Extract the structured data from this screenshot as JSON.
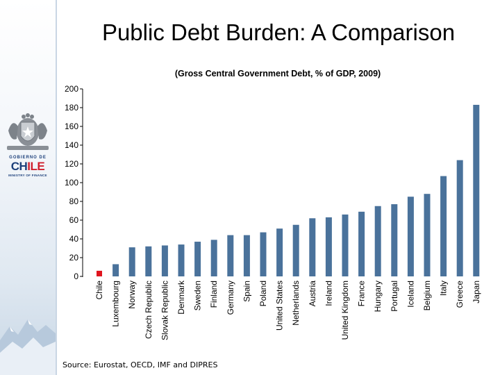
{
  "page": {
    "title": "Public Debt Burden: A Comparison",
    "source": "Source: Eurostat, OECD, IMF and DIPRES"
  },
  "logo": {
    "gobierno": "GOBIERNO DE",
    "chile_part1": "CH",
    "chile_part2": "ILE",
    "ministry": "MINISTRY OF FINANCE"
  },
  "colors": {
    "bar": "#4a729b",
    "highlight": "#e0141e"
  },
  "chart_data": {
    "type": "bar",
    "title": "(Gross Central Government Debt, % of GDP, 2009)",
    "xlabel": "",
    "ylabel": "",
    "ylim": [
      0,
      200
    ],
    "yticks": [
      0,
      20,
      40,
      60,
      80,
      100,
      120,
      140,
      160,
      180,
      200
    ],
    "categories": [
      "Chile",
      "Luxembourg",
      "Norway",
      "Czech Republic",
      "Slovak Republic",
      "Denmark",
      "Sweden",
      "Finland",
      "Germany",
      "Spain",
      "Poland",
      "United States",
      "Netherlands",
      "Austria",
      "Ireland",
      "United Kingdom",
      "France",
      "Hungary",
      "Portugal",
      "Iceland",
      "Belgium",
      "Italy",
      "Greece",
      "Japan"
    ],
    "values": [
      6,
      13,
      31,
      32,
      33,
      34,
      37,
      39,
      44,
      44,
      47,
      51,
      55,
      62,
      63,
      66,
      69,
      75,
      77,
      85,
      88,
      107,
      124,
      183
    ],
    "highlight": [
      "Chile"
    ]
  }
}
